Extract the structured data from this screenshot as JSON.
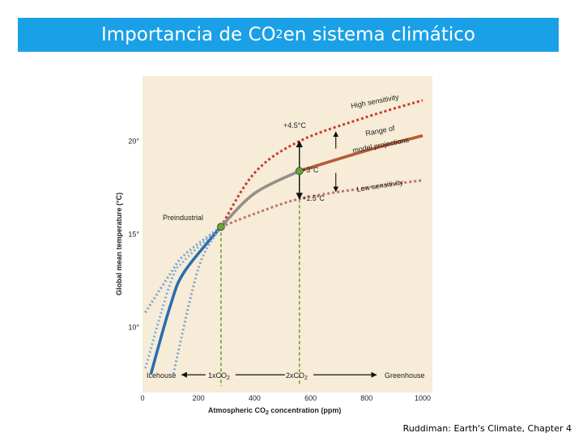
{
  "slide": {
    "title_main": "Importancia de CO",
    "title_sub": "2",
    "title_rest": " en sistema climático",
    "credit": "Ruddiman: Earth's Climate, Chapter 4"
  },
  "chart_data": {
    "type": "line",
    "xlabel_pre": "Atmospheric CO",
    "xlabel_sub": "2",
    "xlabel_post": " concentration  (ppm)",
    "ylabel": "Global mean temperature (°C)",
    "xlim": [
      0,
      1000
    ],
    "ylim": [
      6.5,
      23.5
    ],
    "xticks": [
      0,
      200,
      400,
      600,
      800,
      1000
    ],
    "yticks": [
      {
        "value": 10,
        "label": "10°"
      },
      {
        "value": 15,
        "label": "15°"
      },
      {
        "value": 20,
        "label": "20°"
      }
    ],
    "series": [
      {
        "name": "High sensitivity",
        "values": [
          [
            10,
            7.8
          ],
          [
            100,
            12.4
          ],
          [
            150,
            13.6
          ],
          [
            280,
            15.4
          ],
          [
            400,
            18.3
          ],
          [
            560,
            20.0
          ],
          [
            800,
            21.3
          ],
          [
            1000,
            22.2
          ]
        ]
      },
      {
        "name": "Range of model projections",
        "values": [
          [
            30,
            7.5
          ],
          [
            100,
            11.2
          ],
          [
            150,
            13.0
          ],
          [
            280,
            15.4
          ],
          [
            400,
            17.2
          ],
          [
            560,
            18.4
          ],
          [
            800,
            19.5
          ],
          [
            1000,
            20.3
          ]
        ]
      },
      {
        "name": "Low sensitivity",
        "values": [
          [
            110,
            7.5
          ],
          [
            200,
            13.2
          ],
          [
            280,
            15.4
          ],
          [
            400,
            16.1
          ],
          [
            560,
            16.9
          ],
          [
            800,
            17.5
          ],
          [
            1000,
            17.9
          ]
        ]
      },
      {
        "name": "",
        "values": [
          [
            10,
            10.8
          ],
          [
            100,
            12.9
          ],
          [
            150,
            13.9
          ],
          [
            280,
            15.4
          ]
        ]
      }
    ],
    "points": [
      {
        "label": "Preindustrial",
        "x": 280,
        "y": 15.4
      },
      {
        "label": "+3°C",
        "x": 560,
        "y": 18.4
      }
    ],
    "annotations": {
      "high_sensitivity": "High sensitivity",
      "range_of": "Range of",
      "model_projections": "model projections",
      "low_sensitivity": "Low sensitivity",
      "plus45": "+4.5°C",
      "plus3": "+3°C",
      "plus15": "+1.5°C",
      "preindustrial": "Preindustrial",
      "icehouse": "Icehouse",
      "x1_pre": "1xCO",
      "x1_sub": "2",
      "x2_pre": "2xCO",
      "x2_sub": "2",
      "greenhouse": "Greenhouse"
    },
    "colors": {
      "background": "#f6ecd7",
      "high": "#cc3a30",
      "range": "#b85a35",
      "low": "#c67070",
      "gray_curve": "#968e87",
      "blue_dark": "#2c6cb0",
      "blue_light": "#79b0de",
      "blue_dotted": "#7fa2c8",
      "guide": "#70a030",
      "marker": "#6ea23c"
    }
  }
}
